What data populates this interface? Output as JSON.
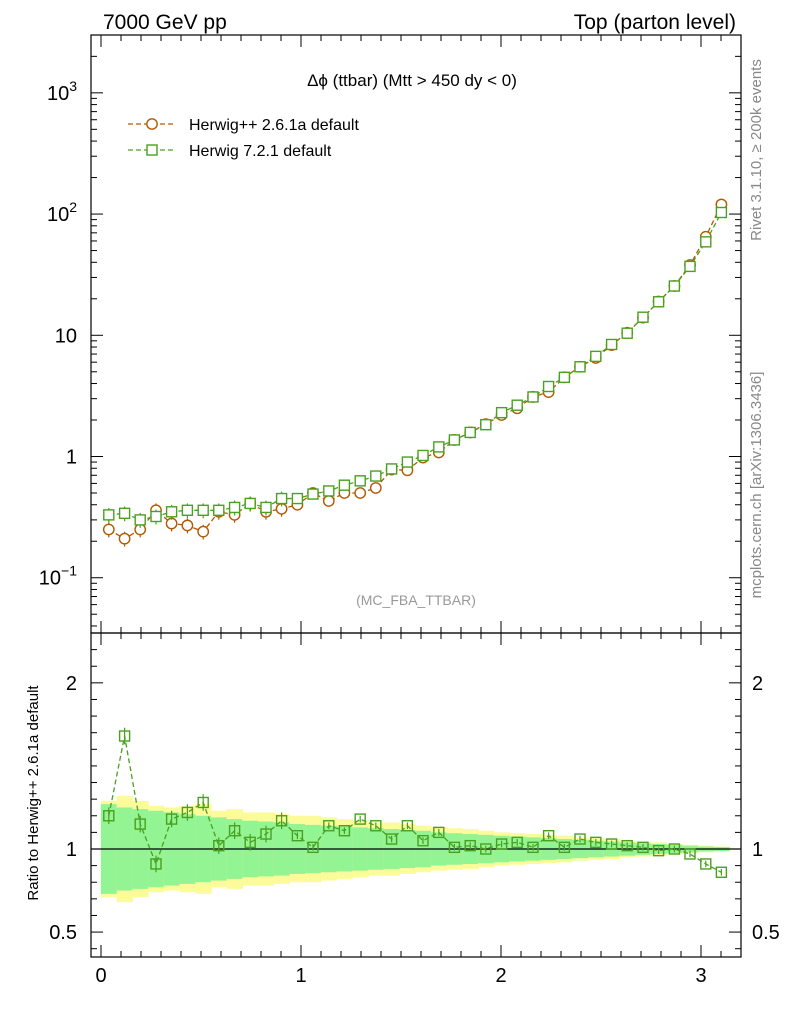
{
  "header": {
    "left": "7000 GeV pp",
    "right": "Top (parton level)"
  },
  "side_labels": {
    "rivet": "Rivet 3.1.10, ≥ 200k events",
    "mcplots": "mcplots.cern.ch [arXiv:1306.3436]"
  },
  "chart_data": [
    {
      "type": "scatter",
      "title": "Δϕ (ttbar) (Mtt > 450 dy < 0)",
      "watermark": "(MC_FBA_TTBAR)",
      "xlabel": "",
      "ylabel": "",
      "xlim": [
        -0.05,
        3.2
      ],
      "ylim": [
        0.035,
        3000
      ],
      "yscale": "log",
      "xticks": [
        0,
        1,
        2,
        3
      ],
      "yticks": [
        {
          "value": 0.1,
          "label": "10",
          "sup": "−1"
        },
        {
          "value": 1,
          "label": "1",
          "sup": ""
        },
        {
          "value": 10,
          "label": "10",
          "sup": ""
        },
        {
          "value": 100,
          "label": "10",
          "sup": "2"
        },
        {
          "value": 1000,
          "label": "10",
          "sup": "3"
        }
      ],
      "legend_position": "top-left",
      "x": [
        0.039,
        0.118,
        0.196,
        0.275,
        0.353,
        0.432,
        0.511,
        0.589,
        0.668,
        0.746,
        0.825,
        0.903,
        0.982,
        1.06,
        1.139,
        1.217,
        1.296,
        1.374,
        1.453,
        1.532,
        1.61,
        1.689,
        1.767,
        1.846,
        1.924,
        2.003,
        2.081,
        2.16,
        2.238,
        2.317,
        2.395,
        2.474,
        2.553,
        2.631,
        2.71,
        2.788,
        2.867,
        2.945,
        3.024,
        3.102
      ],
      "series": [
        {
          "name": "Herwig++ 2.6.1a default",
          "color": "#b35900",
          "marker": "circle",
          "values": [
            0.25,
            0.21,
            0.25,
            0.36,
            0.28,
            0.27,
            0.24,
            0.35,
            0.33,
            0.41,
            0.35,
            0.37,
            0.4,
            0.5,
            0.43,
            0.5,
            0.5,
            0.55,
            0.78,
            0.77,
            0.98,
            1.08,
            1.37,
            1.58,
            1.85,
            2.2,
            2.5,
            3.1,
            3.4,
            4.5,
            5.5,
            6.5,
            8.3,
            10.5,
            14.0,
            19.0,
            25.5,
            38.0,
            65.0,
            120.0
          ]
        },
        {
          "name": "Herwig 7.2.1 default",
          "color": "#4aa020",
          "marker": "square",
          "values": [
            0.33,
            0.34,
            0.3,
            0.32,
            0.35,
            0.36,
            0.36,
            0.36,
            0.38,
            0.41,
            0.38,
            0.45,
            0.45,
            0.49,
            0.52,
            0.58,
            0.63,
            0.69,
            0.79,
            0.9,
            1.02,
            1.2,
            1.37,
            1.58,
            1.83,
            2.3,
            2.65,
            3.1,
            3.78,
            4.5,
            5.5,
            6.7,
            8.4,
            10.4,
            14.1,
            18.9,
            25.5,
            37.0,
            59.0,
            103.0
          ]
        }
      ]
    },
    {
      "type": "scatter",
      "title": "",
      "xlabel": "",
      "ylabel": "Ratio to Herwig++ 2.6.1a default",
      "xlim": [
        -0.05,
        3.2
      ],
      "ylim": [
        0.35,
        2.3
      ],
      "xticks": [
        0,
        1,
        2,
        3
      ],
      "yticks": [
        0.5,
        1,
        2
      ],
      "band_colors": {
        "inner": "#92f492",
        "outer": "#fbfb9a"
      },
      "band_inner": [
        0.27,
        0.25,
        0.24,
        0.23,
        0.22,
        0.21,
        0.2,
        0.19,
        0.18,
        0.17,
        0.165,
        0.16,
        0.15,
        0.145,
        0.14,
        0.135,
        0.13,
        0.125,
        0.12,
        0.115,
        0.11,
        0.1,
        0.095,
        0.09,
        0.085,
        0.08,
        0.075,
        0.07,
        0.065,
        0.06,
        0.055,
        0.05,
        0.045,
        0.04,
        0.035,
        0.03,
        0.025,
        0.02,
        0.015,
        0.012
      ],
      "band_outer": [
        0.29,
        0.32,
        0.29,
        0.26,
        0.25,
        0.26,
        0.27,
        0.23,
        0.24,
        0.22,
        0.22,
        0.21,
        0.2,
        0.2,
        0.19,
        0.18,
        0.17,
        0.16,
        0.16,
        0.15,
        0.14,
        0.13,
        0.125,
        0.12,
        0.11,
        0.1,
        0.095,
        0.09,
        0.085,
        0.08,
        0.07,
        0.065,
        0.06,
        0.05,
        0.045,
        0.04,
        0.03,
        0.025,
        0.02,
        0.015
      ],
      "reference_line": 1,
      "series": [
        {
          "name": "Herwig 7.2.1 default",
          "color": "#4aa020",
          "marker": "square",
          "values": [
            1.2,
            1.68,
            1.15,
            0.91,
            1.18,
            1.22,
            1.28,
            1.02,
            1.11,
            1.04,
            1.09,
            1.17,
            1.08,
            1.01,
            1.14,
            1.11,
            1.18,
            1.14,
            1.06,
            1.14,
            1.05,
            1.1,
            1.01,
            1.02,
            1.0,
            1.03,
            1.04,
            1.01,
            1.08,
            1.01,
            1.06,
            1.04,
            1.03,
            1.02,
            1.01,
            0.99,
            1.0,
            0.97,
            0.91,
            0.86
          ]
        }
      ]
    }
  ]
}
